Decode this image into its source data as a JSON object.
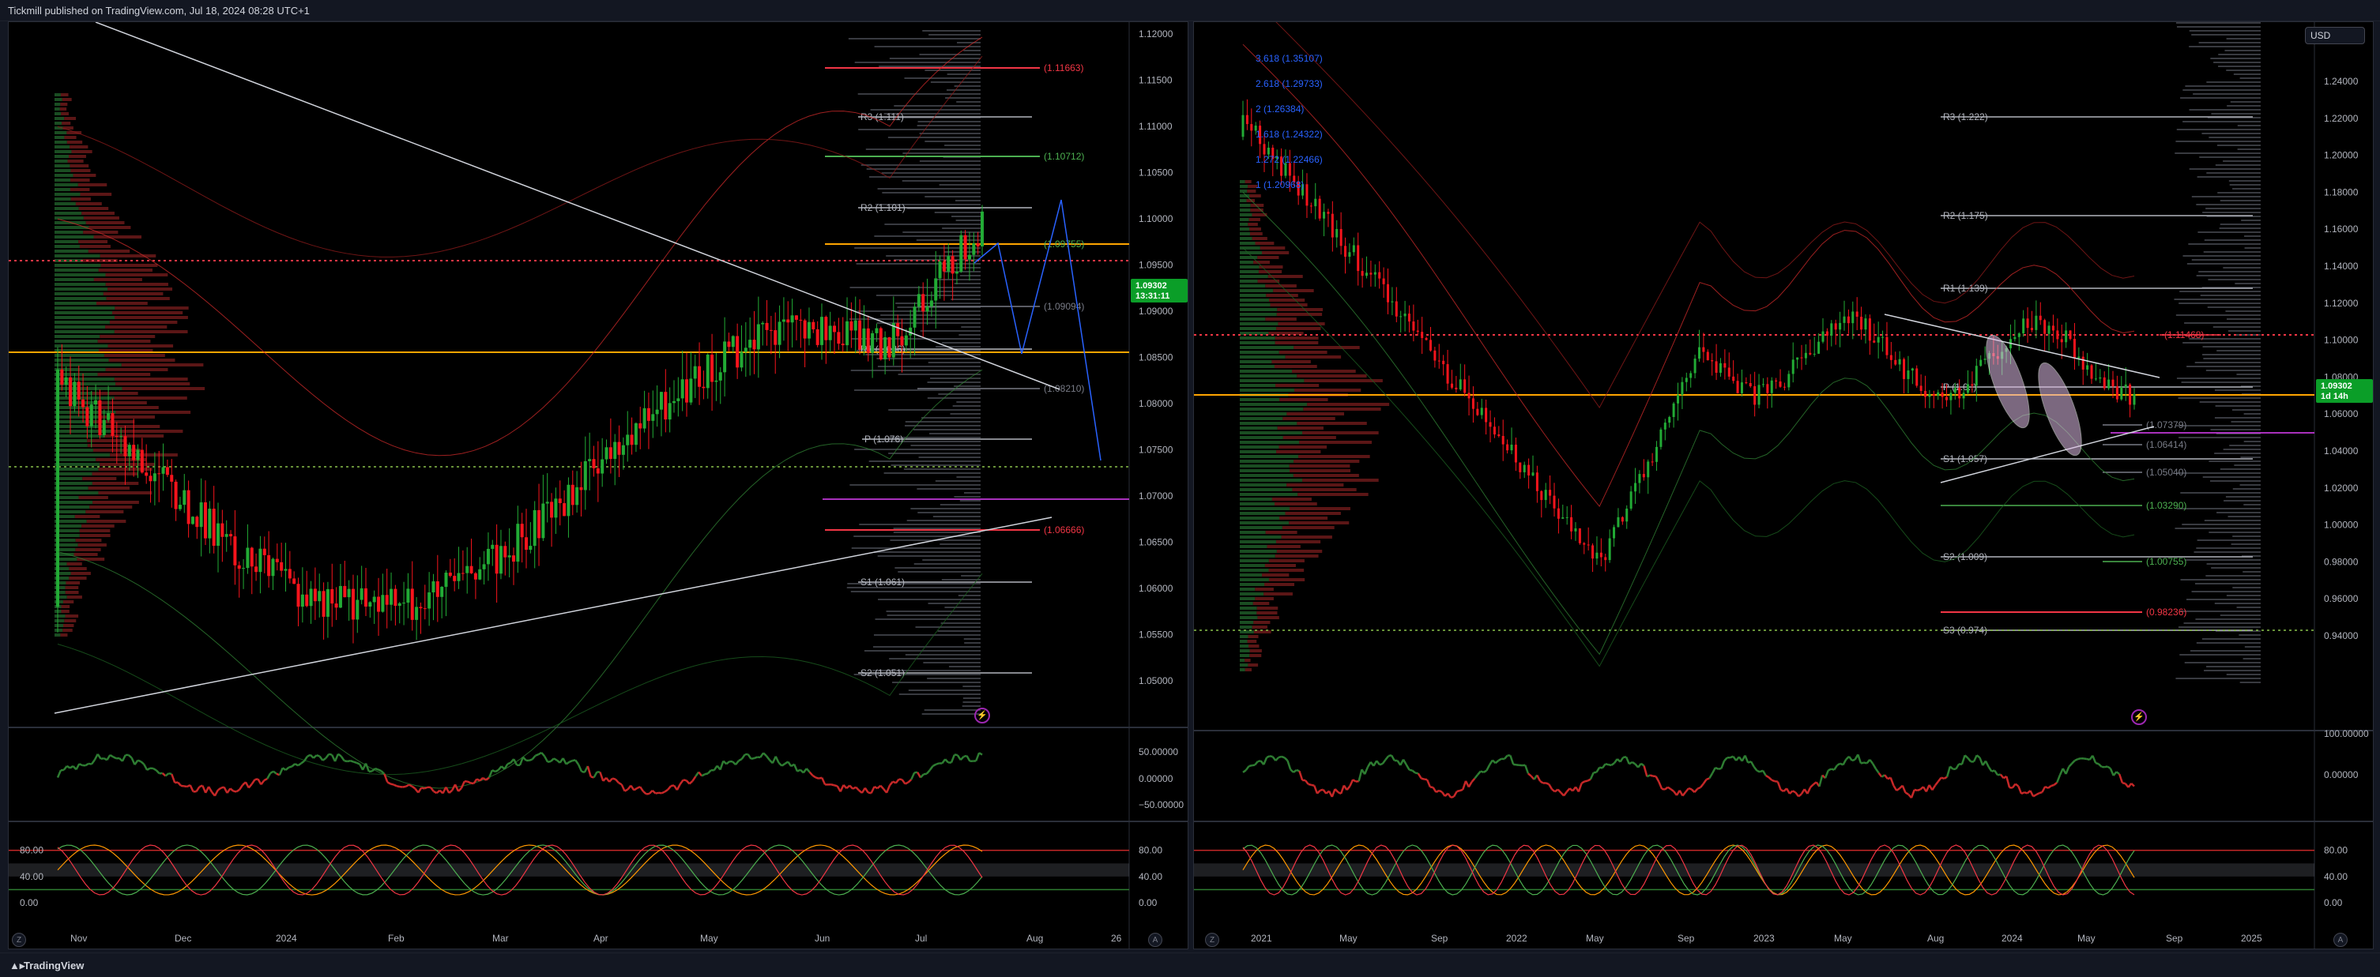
{
  "header": {
    "published": "Tickmill published on TradingView.com, Jul 18, 2024 08:28 UTC+1"
  },
  "footer": {
    "brand": "TradingView",
    "logo": "tradingview-logo-icon"
  },
  "colors": {
    "up": "#089981",
    "down": "#f23645",
    "candle_up": "#22ab35",
    "candle_down": "#f7141c",
    "pivot": "#ffa500",
    "badge": "#0b9e28"
  },
  "left_chart": {
    "price_scale": [
      "1.12000",
      "1.11500",
      "1.11000",
      "1.10500",
      "1.10000",
      "1.09500",
      "1.09000",
      "1.08500",
      "1.08000",
      "1.07500",
      "1.07000",
      "1.06500",
      "1.06000",
      "1.05500",
      "1.05000"
    ],
    "last_price": "1.09302",
    "countdown": "13:31:11",
    "levels": [
      {
        "label": "(1.11663)",
        "color": "#f23645"
      },
      {
        "label": "R3 (1.111)",
        "color": "#b2b5be"
      },
      {
        "label": "(1.10712)",
        "color": "#4caf50"
      },
      {
        "label": "R2 (1.101)",
        "color": "#b2b5be"
      },
      {
        "label": "(1.09755)",
        "color": "#4caf50"
      },
      {
        "label": "(1.09094)",
        "color": "#787b86"
      },
      {
        "label": "R1 (1.086)",
        "color": "#b2b5be"
      },
      {
        "label": "(1.08210)",
        "color": "#787b86"
      },
      {
        "label": "P (1.076)",
        "color": "#b2b5be"
      },
      {
        "label": "(1.06666)",
        "color": "#f23645"
      },
      {
        "label": "S1 (1.061)",
        "color": "#b2b5be"
      },
      {
        "label": "S2 (1.051)",
        "color": "#b2b5be"
      }
    ],
    "rsi_scale": [
      "50.00000",
      "0.00000",
      "−50.00000"
    ],
    "stoch_scale": [
      "80.00",
      "40.00",
      "0.00"
    ],
    "stoch_left_scale": [
      "80.00",
      "40.00",
      "0.00"
    ],
    "time_labels": [
      "Nov",
      "Dec",
      "2024",
      "Feb",
      "Mar",
      "Apr",
      "May",
      "Jun",
      "Jul",
      "Aug",
      "26"
    ],
    "scale_mode": [
      "Z",
      "A"
    ],
    "icon": "lightning-icon"
  },
  "right_chart": {
    "currency": "USD",
    "price_scale": [
      "1.24000",
      "1.22000",
      "1.20000",
      "1.18000",
      "1.16000",
      "1.14000",
      "1.12000",
      "1.10000",
      "1.08000",
      "1.06000",
      "1.04000",
      "1.02000",
      "1.00000",
      "0.98000",
      "0.96000",
      "0.94000"
    ],
    "last_price": "1.09302",
    "countdown": "1d 14h",
    "fib_labels": [
      "3.618 (1.35107)",
      "2.618 (1.29733)",
      "2 (1.26384)",
      "1.618 (1.24322)",
      "1.272 (1.22466)",
      "1 (1.20968)"
    ],
    "levels": [
      {
        "label": "R3 (1.222)",
        "color": "#b2b5be"
      },
      {
        "label": "R2 (1.175)",
        "color": "#b2b5be"
      },
      {
        "label": "R1 (1.139)",
        "color": "#b2b5be"
      },
      {
        "label": "(1.11468)",
        "color": "#f23645"
      },
      {
        "label": "P (1.0..)",
        "color": "#b2b5be"
      },
      {
        "label": "(1.07379)",
        "color": "#787b86"
      },
      {
        "label": "(1.06414)",
        "color": "#787b86"
      },
      {
        "label": "S1 (1.057)",
        "color": "#b2b5be"
      },
      {
        "label": "(1.05040)",
        "color": "#787b86"
      },
      {
        "label": "(1.03290)",
        "color": "#4caf50"
      },
      {
        "label": "S2 (1.009)",
        "color": "#b2b5be"
      },
      {
        "label": "(1.00755)",
        "color": "#4caf50"
      },
      {
        "label": "(0.98236)",
        "color": "#f23645"
      },
      {
        "label": "S3 (0.974)",
        "color": "#b2b5be"
      }
    ],
    "rsi_scale": [
      "100.00000",
      "0.00000"
    ],
    "stoch_scale": [
      "80.00",
      "40.00",
      "0.00"
    ],
    "time_labels": [
      "2021",
      "May",
      "Sep",
      "2022",
      "May",
      "Sep",
      "2023",
      "May",
      "Aug",
      "2024",
      "May",
      "Sep",
      "2025"
    ],
    "scale_mode": [
      "Z",
      "A"
    ],
    "icon": "lightning-icon"
  }
}
